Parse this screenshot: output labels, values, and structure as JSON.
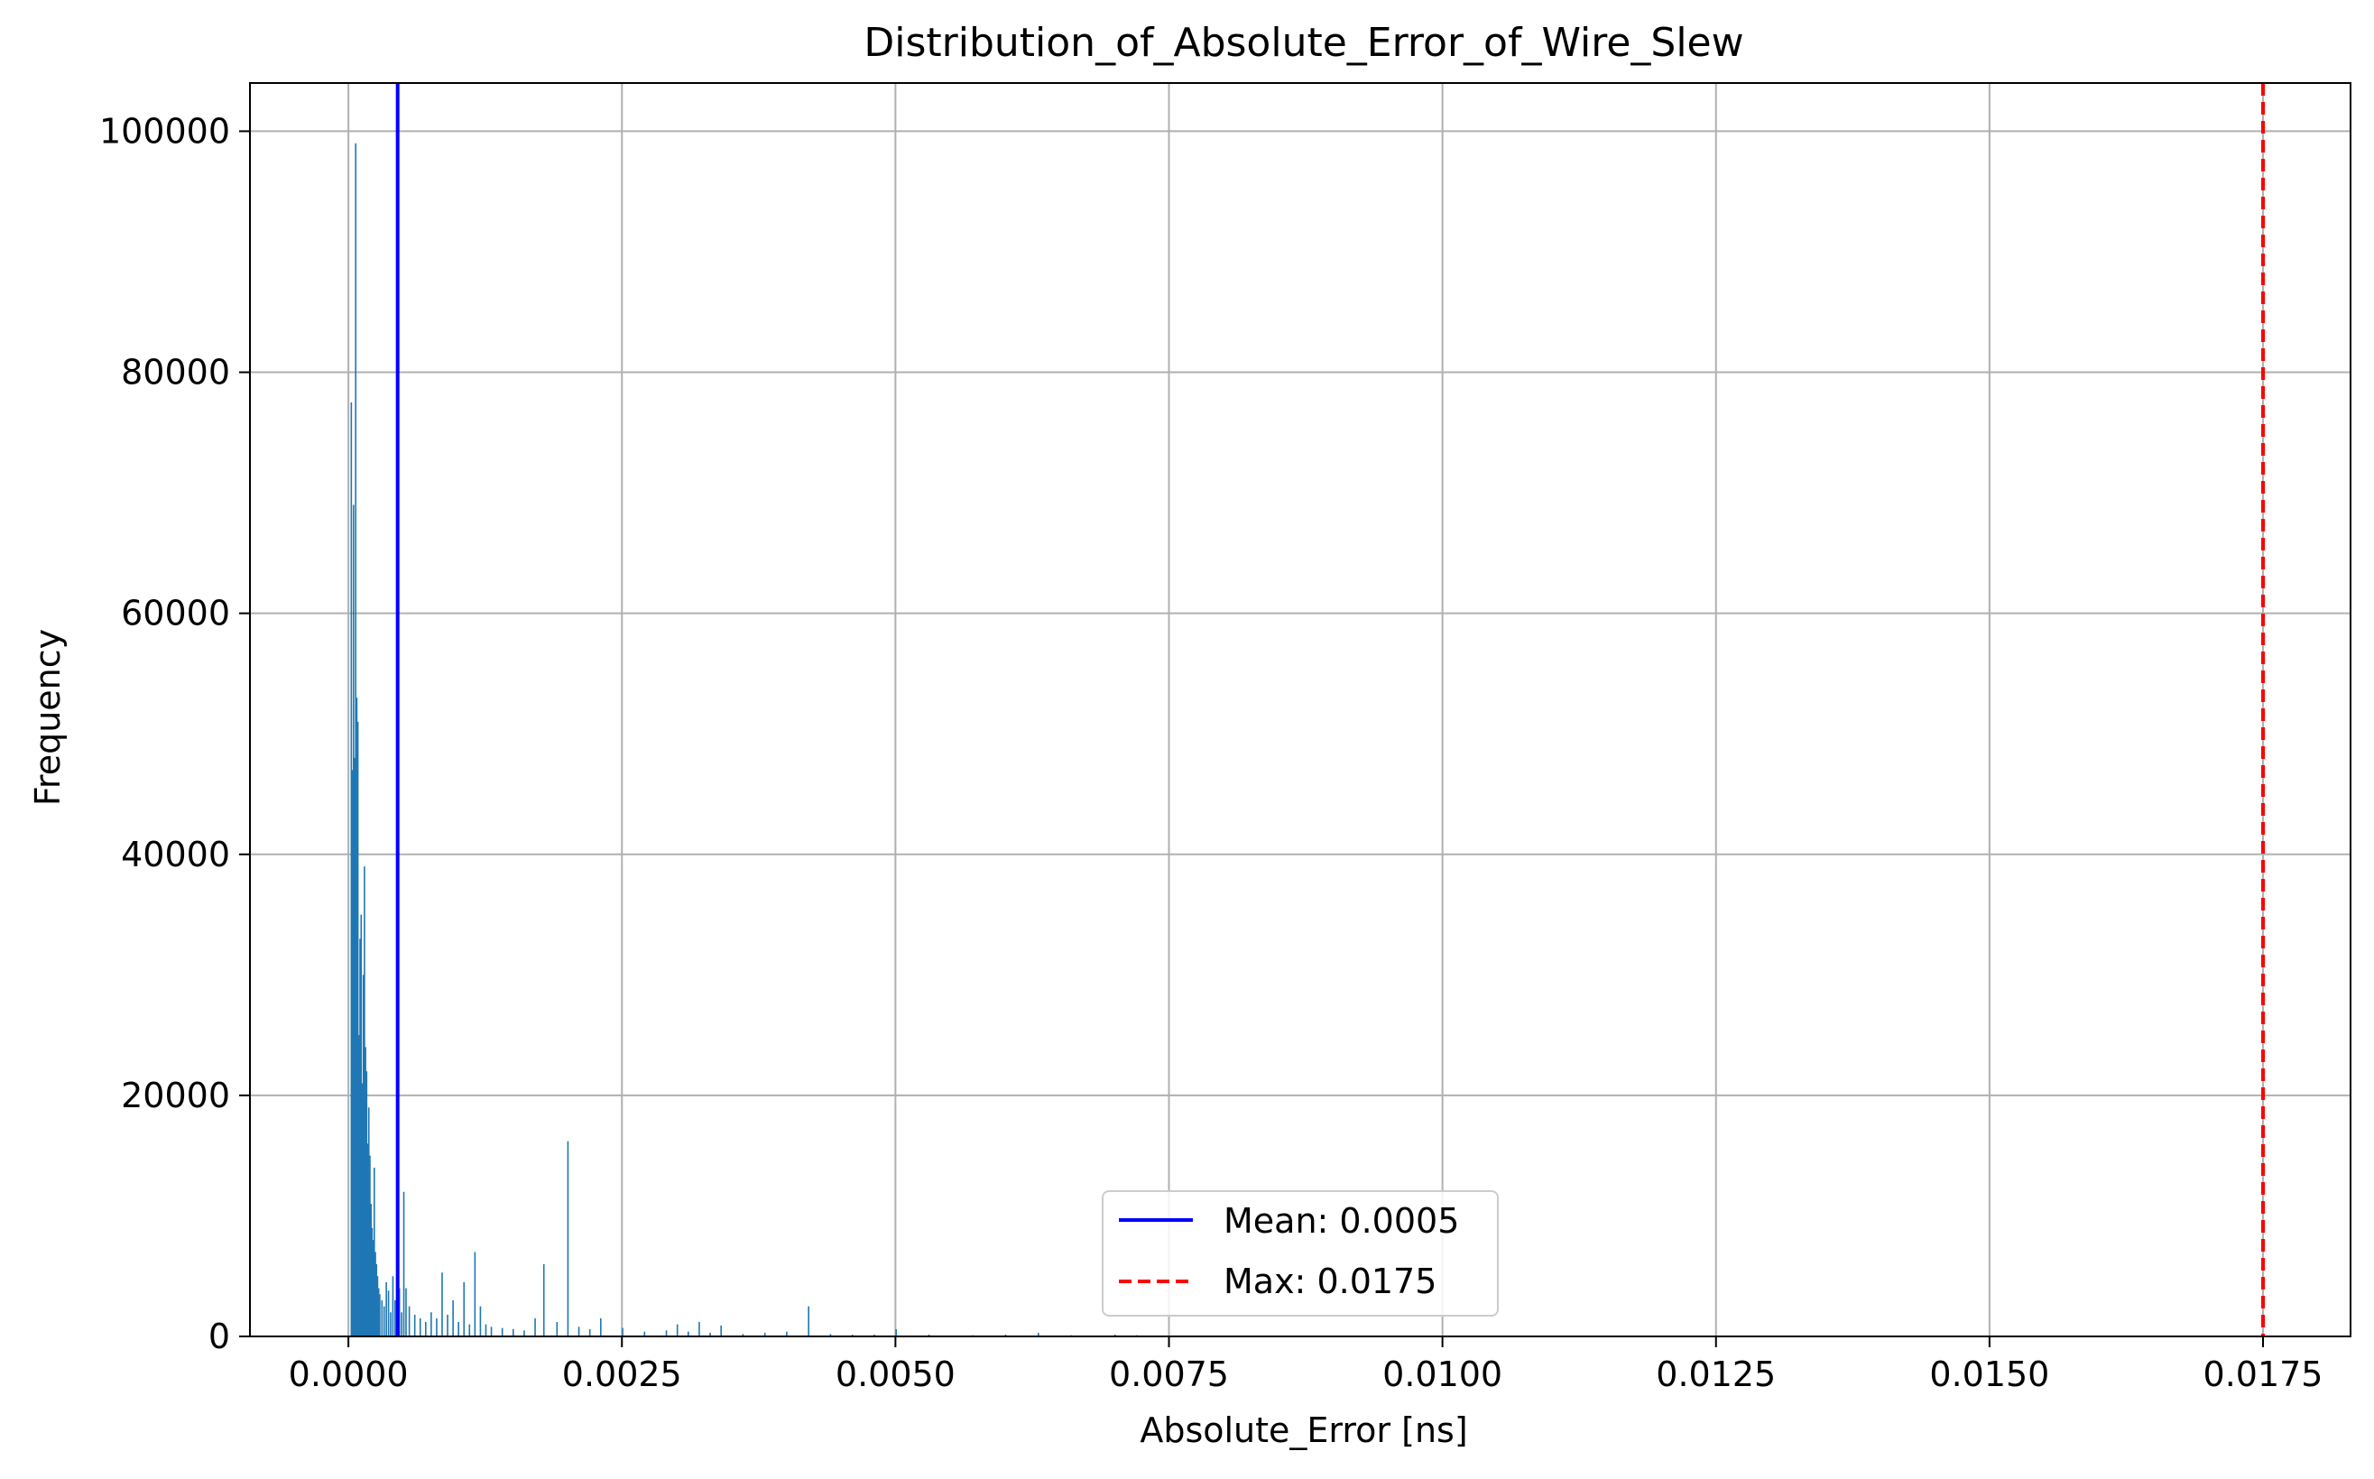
{
  "chart_data": {
    "type": "bar",
    "title": "Distribution_of_Absolute_Error_of_Wire_Slew",
    "xlabel": "Absolute_Error [ns]",
    "ylabel": "Frequency",
    "xlim": [
      -0.0009,
      0.0183
    ],
    "ylim": [
      0,
      104000
    ],
    "x_ticks": [
      0.0,
      0.0025,
      0.005,
      0.0075,
      0.01,
      0.0125,
      0.015,
      0.0175
    ],
    "x_tick_labels": [
      "0.0000",
      "0.0025",
      "0.0050",
      "0.0075",
      "0.0100",
      "0.0125",
      "0.0150",
      "0.0175"
    ],
    "y_ticks": [
      0,
      20000,
      40000,
      60000,
      80000,
      100000
    ],
    "y_tick_labels": [
      "0",
      "20000",
      "40000",
      "60000",
      "80000",
      "100000"
    ],
    "grid": true,
    "legend_position": "bottom-center",
    "bar_color": "#1f77b4",
    "series": [
      {
        "name": "",
        "x": [
          2e-05,
          3e-05,
          4e-05,
          5e-05,
          6e-05,
          7e-05,
          8e-05,
          9e-05,
          0.0001,
          0.00011,
          0.00012,
          0.00013,
          0.00014,
          0.00015,
          0.00016,
          0.00017,
          0.00018,
          0.00019,
          0.0002,
          0.00021,
          0.00022,
          0.00023,
          0.00024,
          0.00025,
          0.00026,
          0.00027,
          0.00028,
          0.0003,
          0.00032,
          0.00034,
          0.00036,
          0.00038,
          0.0004,
          0.00042,
          0.00044,
          0.00046,
          0.00048,
          0.0005,
          0.00052,
          0.00055,
          0.0006,
          0.00065,
          0.0007,
          0.00075,
          0.0008,
          0.00085,
          0.0009,
          0.00095,
          0.001,
          0.00105,
          0.0011,
          0.00115,
          0.0012,
          0.00125,
          0.0013,
          0.0014,
          0.0015,
          0.0016,
          0.0017,
          0.00178,
          0.0019,
          0.002,
          0.0021,
          0.0022,
          0.0023,
          0.0025,
          0.0027,
          0.0029,
          0.003,
          0.0031,
          0.0032,
          0.0033,
          0.0034,
          0.0036,
          0.0038,
          0.004,
          0.0042,
          0.0044,
          0.0046,
          0.0048,
          0.005,
          0.0053,
          0.0057,
          0.006,
          0.0063,
          0.0066,
          0.007,
          0.0072,
          0.0076
        ],
        "values": [
          77500,
          47000,
          69000,
          48000,
          99000,
          53000,
          51000,
          25000,
          33000,
          35000,
          21000,
          30000,
          39000,
          24000,
          22000,
          16000,
          19000,
          15000,
          11000,
          9000,
          8000,
          14000,
          7000,
          6000,
          5000,
          4000,
          3500,
          3000,
          2500,
          4500,
          3800,
          2000,
          5000,
          3000,
          2500,
          4000,
          2000,
          12000,
          4000,
          2500,
          1800,
          1500,
          1200,
          2000,
          1500,
          5300,
          1800,
          3000,
          1200,
          4500,
          1000,
          7000,
          2500,
          1000,
          800,
          700,
          600,
          500,
          1500,
          6000,
          1200,
          16200,
          800,
          600,
          1500,
          700,
          400,
          500,
          1000,
          400,
          1200,
          300,
          900,
          200,
          300,
          400,
          2500,
          200,
          150,
          150,
          600,
          150,
          100,
          150,
          300,
          100,
          150,
          100,
          80
        ]
      }
    ],
    "mean_line": {
      "label": "Mean: 0.0005",
      "value": 0.00045,
      "color": "#0000ff",
      "style": "solid"
    },
    "max_line": {
      "label": "Max: 0.0175",
      "value": 0.0175,
      "color": "#ff0000",
      "style": "dashed"
    }
  }
}
